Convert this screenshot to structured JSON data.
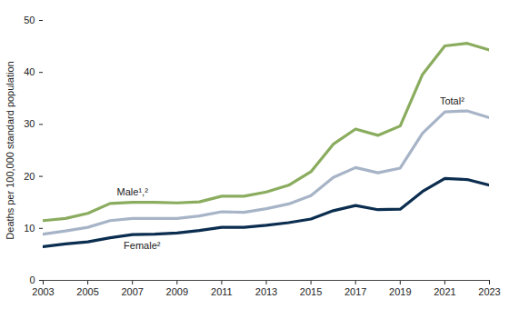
{
  "chart_data": {
    "type": "line",
    "y_label": "Deaths per 100,000 standard population",
    "x": [
      2003,
      2004,
      2005,
      2006,
      2007,
      2008,
      2009,
      2010,
      2011,
      2012,
      2013,
      2014,
      2015,
      2016,
      2017,
      2018,
      2019,
      2020,
      2021,
      2022,
      2023
    ],
    "series": [
      {
        "name": "Male",
        "label": "Male¹,²",
        "color": "#8aac5e",
        "values": [
          11.5,
          11.9,
          12.9,
          14.8,
          15.0,
          15.0,
          14.9,
          15.1,
          16.2,
          16.2,
          17.0,
          18.3,
          20.9,
          26.2,
          29.1,
          27.9,
          29.7,
          39.6,
          45.1,
          45.6,
          44.3
        ]
      },
      {
        "name": "Total",
        "label": "Total²",
        "color": "#a7b4c7",
        "values": [
          8.9,
          9.5,
          10.2,
          11.5,
          11.9,
          11.9,
          11.9,
          12.4,
          13.2,
          13.1,
          13.8,
          14.7,
          16.3,
          19.8,
          21.7,
          20.7,
          21.6,
          28.3,
          32.4,
          32.6,
          31.3
        ]
      },
      {
        "name": "Female",
        "label": "Female²",
        "color": "#0b2d4f",
        "values": [
          6.5,
          7.0,
          7.4,
          8.2,
          8.8,
          8.9,
          9.1,
          9.6,
          10.2,
          10.2,
          10.6,
          11.1,
          11.8,
          13.4,
          14.4,
          13.6,
          13.7,
          17.1,
          19.6,
          19.4,
          18.3
        ]
      }
    ],
    "xlim": [
      2003,
      2023
    ],
    "xticks": [
      2003,
      2005,
      2007,
      2009,
      2011,
      2013,
      2015,
      2017,
      2019,
      2021,
      2023
    ],
    "ylim": [
      0,
      50
    ],
    "yticks": [
      0,
      10,
      20,
      30,
      40,
      50
    ],
    "grid": false,
    "legend": false
  }
}
